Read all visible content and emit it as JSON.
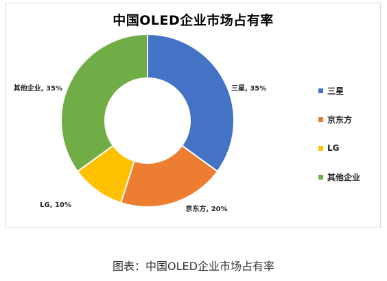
{
  "chart_data": {
    "type": "pie",
    "donut": true,
    "title": "中国OLED企业市场占有率",
    "categories": [
      "三星",
      "京东方",
      "LG",
      "其他企业"
    ],
    "values": [
      35,
      20,
      10,
      35
    ],
    "unit": "%",
    "data_labels": [
      "三星, 35%",
      "京东方, 20%",
      "LG, 10%",
      "其他企业, 35%"
    ],
    "colors": [
      "#4472c4",
      "#ed7d31",
      "#ffc000",
      "#70ad47"
    ],
    "legend_position": "right"
  },
  "caption": "图表：中国OLED企业市场占有率"
}
